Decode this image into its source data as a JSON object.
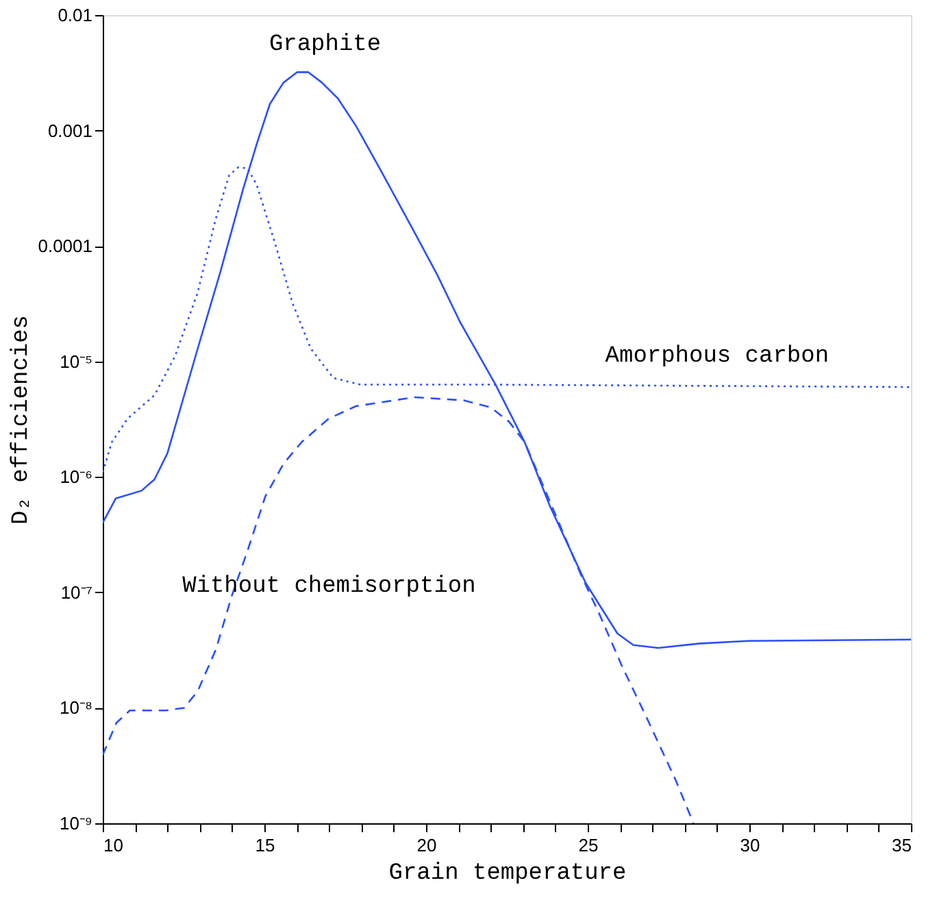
{
  "chart_data": {
    "type": "line",
    "xlabel": "Grain temperature",
    "ylabel": "D₂ efficiencies",
    "log": "y",
    "grid": false,
    "marker": "none",
    "xlim": [
      10,
      35
    ],
    "ylim": [
      1e-09,
      0.01
    ],
    "xticks": [
      10,
      {
        "value": 11,
        "label": null
      },
      {
        "value": 12,
        "label": null
      },
      {
        "value": 13,
        "label": null
      },
      {
        "value": 14,
        "label": null
      },
      15,
      {
        "value": 16,
        "label": null
      },
      {
        "value": 17,
        "label": null
      },
      {
        "value": 18,
        "label": null
      },
      {
        "value": 19,
        "label": null
      },
      20,
      {
        "value": 21,
        "label": null
      },
      {
        "value": 22,
        "label": null
      },
      {
        "value": 23,
        "label": null
      },
      {
        "value": 24,
        "label": null
      },
      25,
      {
        "value": 26,
        "label": null
      },
      {
        "value": 27,
        "label": null
      },
      {
        "value": 28,
        "label": null
      },
      {
        "value": 29,
        "label": null
      },
      30,
      {
        "value": 31,
        "label": null
      },
      {
        "value": 32,
        "label": null
      },
      {
        "value": 33,
        "label": null
      },
      {
        "value": 34,
        "label": null
      },
      35
    ],
    "yticks": [
      {
        "value": 1e-09,
        "label": "10⁻⁹"
      },
      {
        "value": 1e-08,
        "label": "10⁻⁸"
      },
      {
        "value": 1e-07,
        "label": "10⁻⁷"
      },
      {
        "value": 1e-06,
        "label": "10⁻⁶"
      },
      {
        "value": 1e-05,
        "label": "10⁻⁵"
      },
      0.0001,
      0.001,
      0.01
    ],
    "series": [
      {
        "name": "Graphite",
        "color": "#2a4fff",
        "line_style": "solid",
        "x": [
          10,
          10.4,
          11.2,
          11.6,
          12.0,
          12.94,
          13.64,
          14.34,
          14.76,
          15.17,
          15.59,
          16.01,
          16.36,
          16.78,
          17.27,
          17.83,
          18.53,
          19.65,
          20.35,
          21.05,
          22.15,
          23.05,
          23.83,
          24.94,
          25.92,
          26.41,
          27.18,
          28.43,
          29.97,
          35
        ],
        "values": [
          4e-07,
          6.5e-07,
          7.6e-07,
          9.5e-07,
          1.6e-06,
          1.3e-05,
          6e-05,
          0.00031,
          0.00076,
          0.0017,
          0.0026,
          0.0032,
          0.0032,
          0.0026,
          0.0019,
          0.0011,
          0.00049,
          0.00013,
          5.6e-05,
          2.2e-05,
          6.3e-06,
          2e-06,
          5.6e-07,
          1.2e-07,
          4.4e-08,
          3.5e-08,
          3.3e-08,
          3.6e-08,
          3.8e-08,
          3.9e-08
        ]
      },
      {
        "name": "Amorphous carbon",
        "color": "#2a4fff",
        "line_style": "dotted",
        "x": [
          10,
          10.28,
          10.77,
          11.6,
          12.23,
          12.93,
          13.49,
          13.91,
          14.19,
          14.48,
          14.76,
          15.31,
          15.87,
          16.43,
          17.13,
          17.97,
          22,
          35
        ],
        "values": [
          1.1e-06,
          2e-06,
          3.2e-06,
          5.1e-06,
          1.1e-05,
          3.9e-05,
          0.00017,
          0.00041,
          0.00048,
          0.00047,
          0.00034,
          0.00011,
          3.2e-05,
          1.3e-05,
          7.2e-06,
          6.3e-06,
          6.3e-06,
          6e-06
        ]
      },
      {
        "name": "Without chemisorption",
        "color": "#2a4fff",
        "line_style": "dashed",
        "x": [
          10,
          10.42,
          10.84,
          11.96,
          12.52,
          12.94,
          13.5,
          13.99,
          14.48,
          15.03,
          15.59,
          16.15,
          16.99,
          17.83,
          19.65,
          21.17,
          22.0,
          22.57,
          23.05,
          24.8,
          25.36,
          26.06,
          26.9,
          27.74,
          28.27
        ],
        "values": [
          3.9e-09,
          7.4e-09,
          9.5e-09,
          9.5e-09,
          1e-08,
          1.4e-08,
          3.2e-08,
          9.3e-08,
          2.3e-07,
          6.8e-07,
          1.3e-06,
          2e-06,
          3.2e-06,
          4.1e-06,
          4.9e-06,
          4.6e-06,
          4e-06,
          3e-06,
          2e-06,
          1.4e-07,
          6.5e-08,
          2.3e-08,
          7.4e-09,
          2.3e-09,
          1e-09
        ]
      }
    ]
  }
}
